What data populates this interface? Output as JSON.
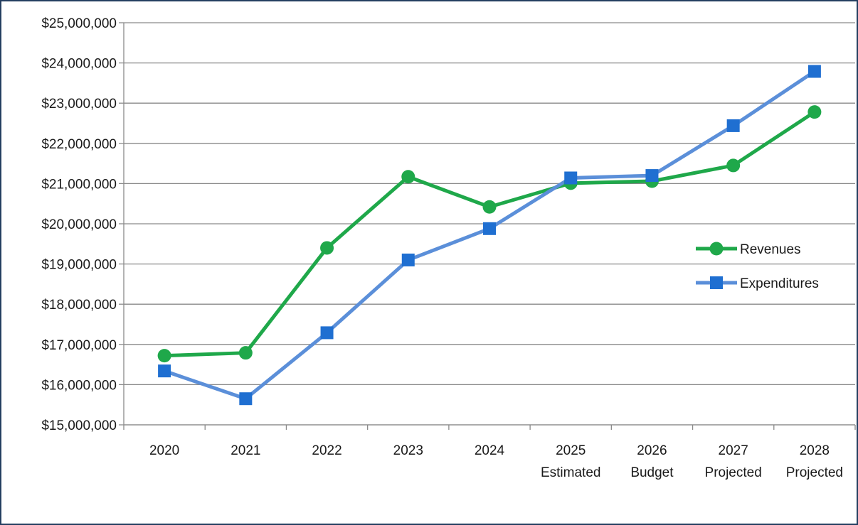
{
  "chart_data": {
    "type": "line",
    "title": "",
    "xlabel": "",
    "ylabel": "",
    "categories": [
      [
        "2020"
      ],
      [
        "2021"
      ],
      [
        "2022"
      ],
      [
        "2023"
      ],
      [
        "2024"
      ],
      [
        "2025",
        "Estimated"
      ],
      [
        "2026",
        "Budget"
      ],
      [
        "2027",
        "Projected"
      ],
      [
        "2028",
        "Projected"
      ]
    ],
    "ylim": [
      15000000,
      25000000
    ],
    "y_ticks": [
      15000000,
      16000000,
      17000000,
      18000000,
      19000000,
      20000000,
      21000000,
      22000000,
      23000000,
      24000000,
      25000000
    ],
    "y_tick_labels": [
      "$15,000,000",
      "$16,000,000",
      "$17,000,000",
      "$18,000,000",
      "$19,000,000",
      "$20,000,000",
      "$21,000,000",
      "$22,000,000",
      "$23,000,000",
      "$24,000,000",
      "$25,000,000"
    ],
    "grid": true,
    "legend_position": "right",
    "series": [
      {
        "name": "Revenues",
        "color": "#1fa84a",
        "marker": "circle",
        "values": [
          16720000,
          16790000,
          19400000,
          21170000,
          20420000,
          21010000,
          21060000,
          21450000,
          22780000
        ]
      },
      {
        "name": "Expenditures",
        "color": "#5b8fd9",
        "marker": "square",
        "values": [
          16340000,
          15650000,
          17290000,
          19100000,
          19880000,
          21140000,
          21200000,
          22440000,
          23790000
        ]
      }
    ]
  }
}
